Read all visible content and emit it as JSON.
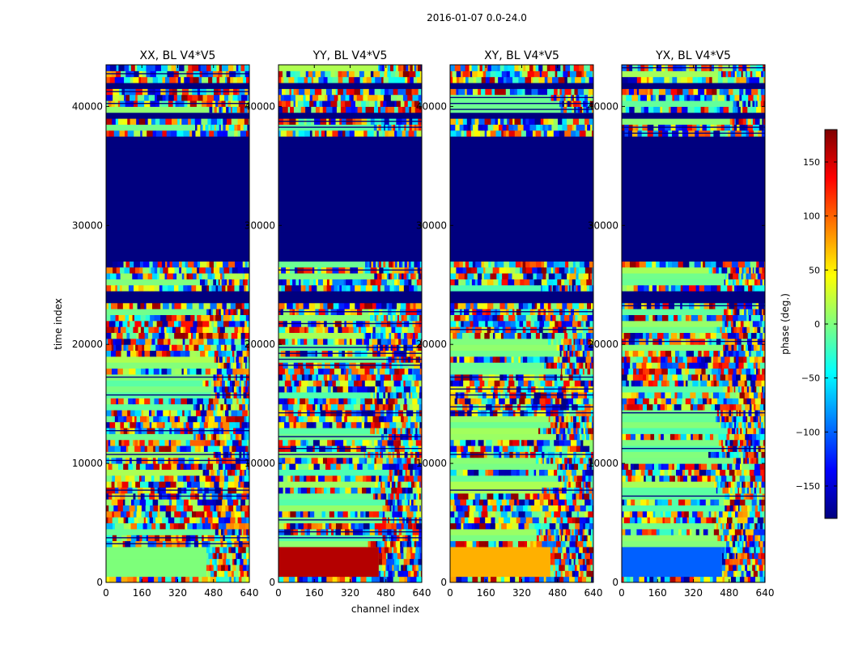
{
  "figure": {
    "suptitle": "2016-01-07 0.0-24.0",
    "xlabel": "channel index",
    "ylabel": "time index"
  },
  "chart_data": {
    "type": "heatmap",
    "colormap": "jet",
    "xlim": [
      0,
      640
    ],
    "ylim": [
      0,
      43500
    ],
    "xticks": [
      0,
      160,
      320,
      480,
      640
    ],
    "yticks": [
      0,
      10000,
      20000,
      30000,
      40000
    ],
    "xtick_labels": [
      "0",
      "160",
      "320",
      "480",
      "640"
    ],
    "ytick_labels": [
      "0",
      "10000",
      "20000",
      "30000",
      "40000"
    ],
    "panels": [
      {
        "title": "XX, BL V4*V5",
        "low_band_color": "#7dff7a"
      },
      {
        "title": "YY, BL V4*V5",
        "low_band_color": "#b40000"
      },
      {
        "title": "XY, BL V4*V5",
        "low_band_color": "#ffb000"
      },
      {
        "title": "YX, BL V4*V5",
        "low_band_color": "#0060ff"
      }
    ],
    "bands": [
      {
        "y0": 27000,
        "y1": 37500,
        "kind": "solid",
        "value": -180
      },
      {
        "y0": 23500,
        "y1": 24300,
        "kind": "solid",
        "value": -180
      },
      {
        "y0": 41300,
        "y1": 41800,
        "kind": "solid",
        "value": -180
      },
      {
        "y0": 38800,
        "y1": 39200,
        "kind": "solid",
        "value": -180
      }
    ],
    "colorbar": {
      "label": "phase (deg.)",
      "min": -180,
      "max": 180,
      "ticks": [
        150,
        100,
        50,
        0,
        -50,
        -100,
        -150
      ],
      "tick_labels": [
        "150",
        "100",
        "50",
        "0",
        "−50",
        "−100",
        "−150"
      ]
    }
  },
  "colors": {
    "jet_stops": [
      "#00007f",
      "#0000ff",
      "#007fff",
      "#00ffff",
      "#7fff7f",
      "#ffff00",
      "#ff7f00",
      "#ff0000",
      "#7f0000"
    ]
  }
}
